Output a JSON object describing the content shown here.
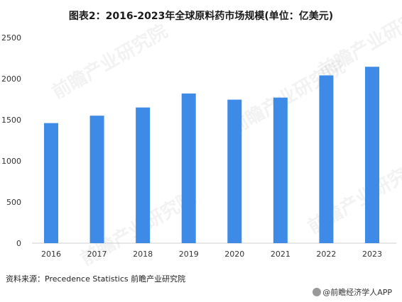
{
  "title": "图表2：2016-2023年全球原料药市场规模(单位：亿美元)",
  "chart_data": {
    "type": "bar",
    "categories": [
      "2016",
      "2017",
      "2018",
      "2019",
      "2020",
      "2021",
      "2022",
      "2023"
    ],
    "values": [
      1460,
      1550,
      1650,
      1820,
      1745,
      1770,
      2040,
      2145
    ],
    "title": "图表2：2016-2023年全球原料药市场规模(单位：亿美元)",
    "xlabel": "",
    "ylabel": "",
    "ylim": [
      0,
      2500
    ],
    "yticks": [
      0,
      500,
      1000,
      1500,
      2000,
      2500
    ],
    "grid": false,
    "bar_color": "#3d8be6"
  },
  "source": "资料来源：Precedence Statistics 前瞻产业研究院",
  "footer": "@前瞻经济学人APP",
  "watermark": "前瞻产业研究院"
}
